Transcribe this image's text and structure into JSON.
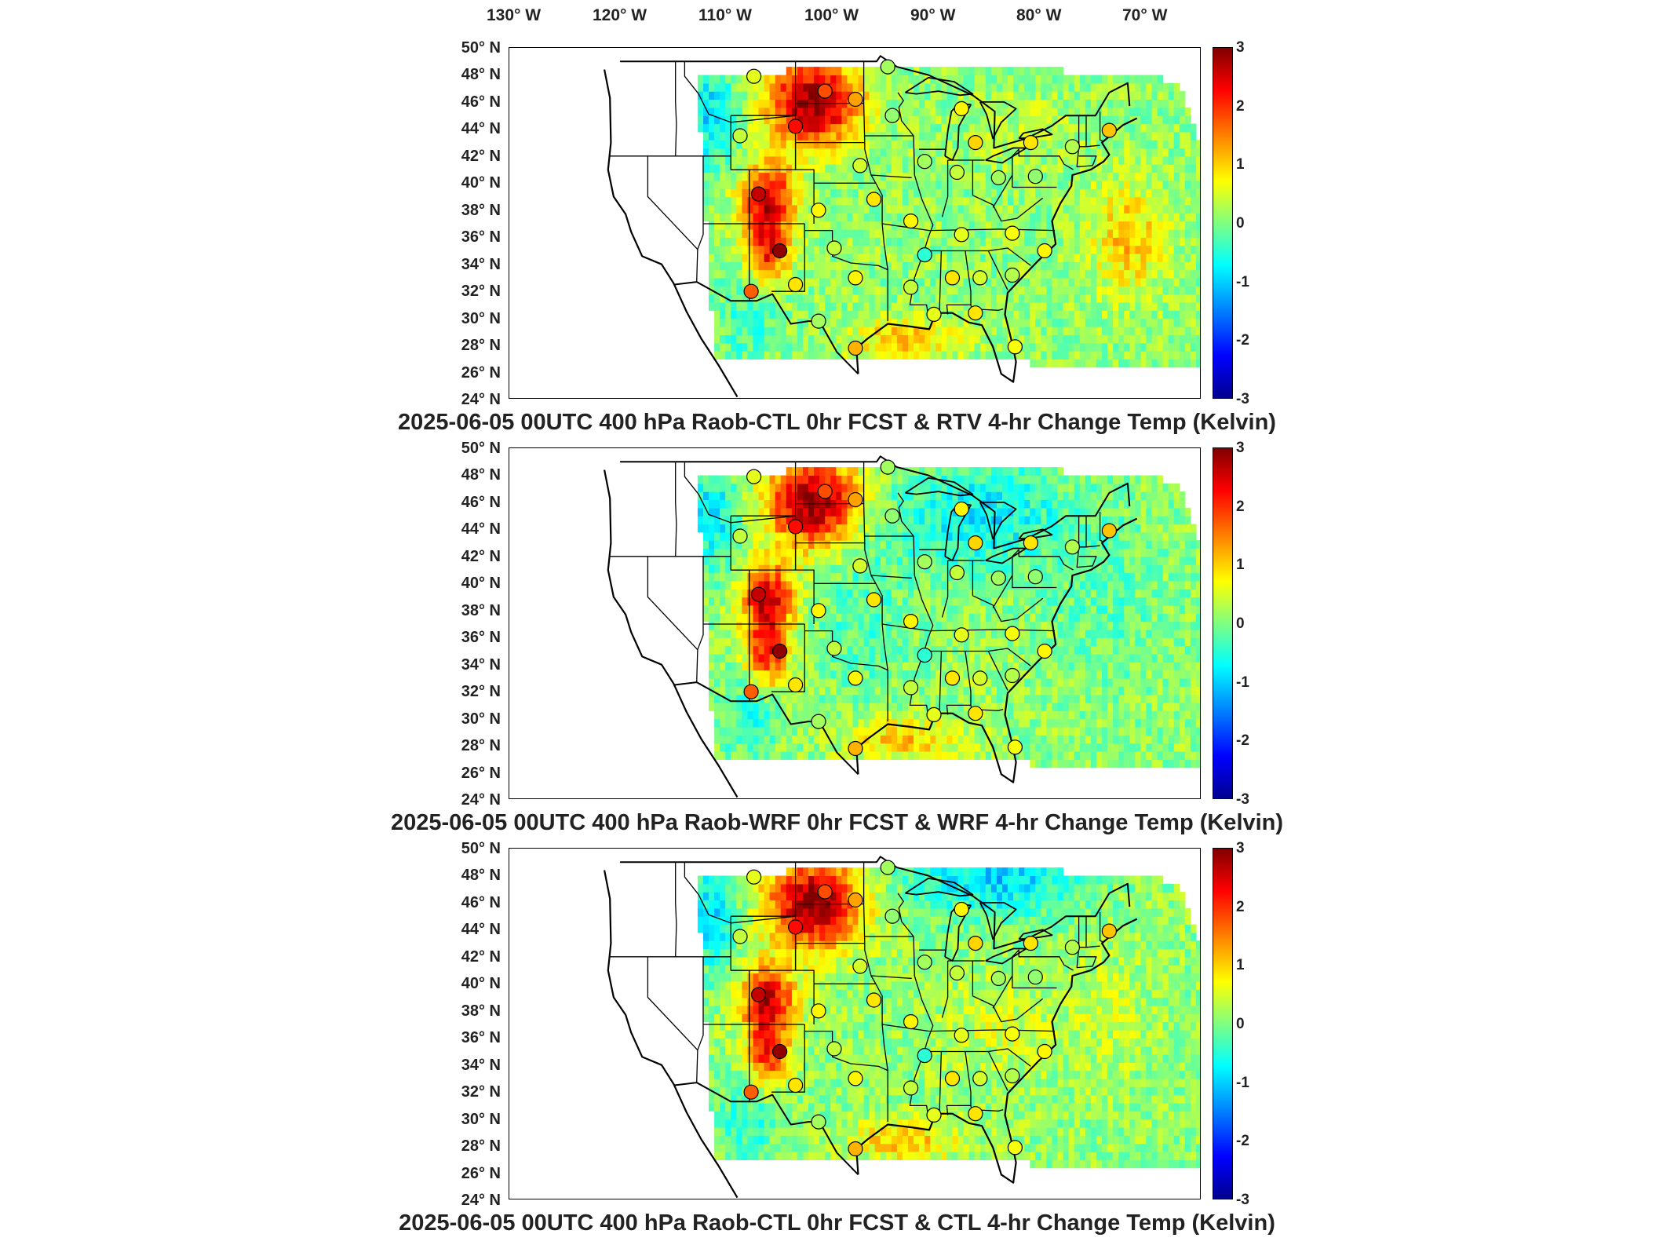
{
  "longitude_labels": [
    "130° W",
    "120° W",
    "110° W",
    "100° W",
    "90° W",
    "80° W",
    "70° W"
  ],
  "latitude_labels": [
    "50° N",
    "48° N",
    "46° N",
    "44° N",
    "42° N",
    "40° N",
    "38° N",
    "36° N",
    "34° N",
    "32° N",
    "30° N",
    "28° N",
    "26° N",
    "24° N"
  ],
  "colorbar": {
    "ticks": [
      "3",
      "2",
      "1",
      "0",
      "-1",
      "-2",
      "-3"
    ],
    "colormap": [
      "#00008f",
      "#0000ff",
      "#0080ff",
      "#00ffff",
      "#80ff80",
      "#ffff00",
      "#ff8000",
      "#ff0000",
      "#800000"
    ]
  },
  "panels": [
    {
      "title": "2025-06-05 00UTC 400 hPa Raob-CTL 0hr FCST & RTV 4-hr Change Temp (Kelvin)",
      "variant": "rtv"
    },
    {
      "title": "2025-06-05 00UTC 400 hPa Raob-WRF 0hr FCST & WRF 4-hr Change Temp (Kelvin)",
      "variant": "wrf"
    },
    {
      "title": "2025-06-05 00UTC 400 hPa Raob-CTL 0hr FCST & CTL 4-hr Change Temp (Kelvin)",
      "variant": "ctl"
    }
  ],
  "stations": [
    {
      "lon": -108.5,
      "lat": 47.9,
      "value": 0.6
    },
    {
      "lon": -100.8,
      "lat": 46.8,
      "value": 1.8
    },
    {
      "lon": -97.5,
      "lat": 46.2,
      "value": 1.3
    },
    {
      "lon": -104.0,
      "lat": 44.2,
      "value": 2.2
    },
    {
      "lon": -110.0,
      "lat": 43.5,
      "value": 0.4
    },
    {
      "lon": -94.0,
      "lat": 48.6,
      "value": 0.2
    },
    {
      "lon": -93.5,
      "lat": 45.0,
      "value": 0.1
    },
    {
      "lon": -86.0,
      "lat": 45.5,
      "value": 0.8
    },
    {
      "lon": -84.5,
      "lat": 43.0,
      "value": 1.0
    },
    {
      "lon": -78.5,
      "lat": 43.0,
      "value": 0.9
    },
    {
      "lon": -74.0,
      "lat": 42.7,
      "value": 0.3
    },
    {
      "lon": -70.0,
      "lat": 43.9,
      "value": 1.1
    },
    {
      "lon": -97.0,
      "lat": 41.3,
      "value": 0.5
    },
    {
      "lon": -90.0,
      "lat": 41.6,
      "value": 0.2
    },
    {
      "lon": -86.5,
      "lat": 40.8,
      "value": 0.4
    },
    {
      "lon": -82.0,
      "lat": 40.4,
      "value": 0.2
    },
    {
      "lon": -78.0,
      "lat": 40.5,
      "value": 0.1
    },
    {
      "lon": -108.0,
      "lat": 39.2,
      "value": 2.6
    },
    {
      "lon": -101.5,
      "lat": 38.0,
      "value": 0.8
    },
    {
      "lon": -95.5,
      "lat": 38.8,
      "value": 0.9
    },
    {
      "lon": -91.5,
      "lat": 37.2,
      "value": 0.8
    },
    {
      "lon": -105.7,
      "lat": 35.0,
      "value": 2.9
    },
    {
      "lon": -99.8,
      "lat": 35.2,
      "value": 0.4
    },
    {
      "lon": -90.0,
      "lat": 34.7,
      "value": -0.5
    },
    {
      "lon": -86.0,
      "lat": 36.2,
      "value": 0.6
    },
    {
      "lon": -80.5,
      "lat": 36.3,
      "value": 0.7
    },
    {
      "lon": -77.0,
      "lat": 35.0,
      "value": 0.8
    },
    {
      "lon": -104.0,
      "lat": 32.5,
      "value": 0.9
    },
    {
      "lon": -97.5,
      "lat": 33.0,
      "value": 0.8
    },
    {
      "lon": -91.5,
      "lat": 32.3,
      "value": 0.4
    },
    {
      "lon": -87.0,
      "lat": 33.0,
      "value": 0.9
    },
    {
      "lon": -84.0,
      "lat": 33.0,
      "value": 0.5
    },
    {
      "lon": -80.5,
      "lat": 33.2,
      "value": 0.3
    },
    {
      "lon": -108.8,
      "lat": 32.0,
      "value": 1.7
    },
    {
      "lon": -101.5,
      "lat": 29.8,
      "value": 0.2
    },
    {
      "lon": -97.5,
      "lat": 27.8,
      "value": 1.2
    },
    {
      "lon": -89.0,
      "lat": 30.3,
      "value": 0.6
    },
    {
      "lon": -84.5,
      "lat": 30.4,
      "value": 0.9
    },
    {
      "lon": -80.2,
      "lat": 27.9,
      "value": 0.7
    }
  ]
}
